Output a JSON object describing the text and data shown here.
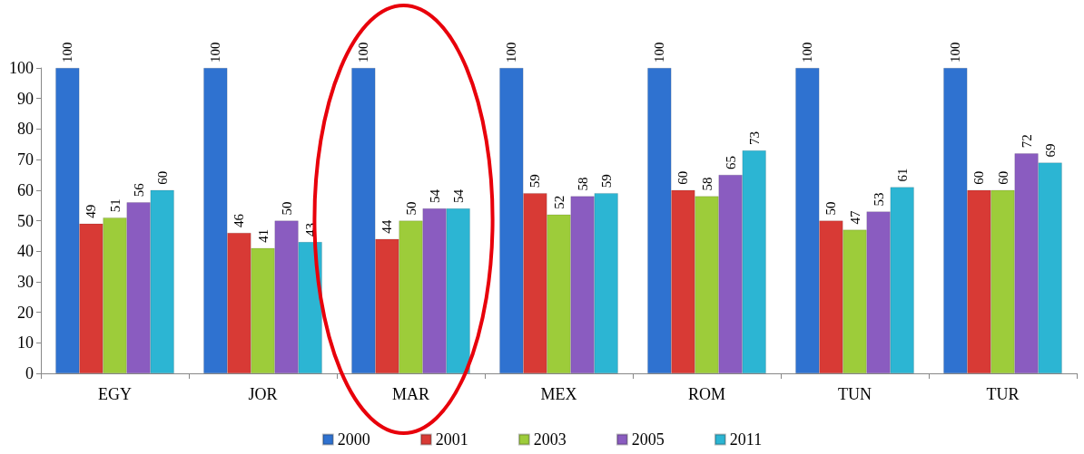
{
  "chart_data": {
    "type": "bar",
    "categories": [
      "EGY",
      "JOR",
      "MAR",
      "MEX",
      "ROM",
      "TUN",
      "TUR"
    ],
    "series": [
      {
        "name": "2000",
        "color": "#2f72d0",
        "values": [
          100,
          100,
          100,
          100,
          100,
          100,
          100
        ]
      },
      {
        "name": "2001",
        "color": "#d83a35",
        "values": [
          49,
          46,
          44,
          59,
          60,
          50,
          60
        ]
      },
      {
        "name": "2003",
        "color": "#9dcc3a",
        "values": [
          51,
          41,
          50,
          52,
          58,
          47,
          60
        ]
      },
      {
        "name": "2005",
        "color": "#8a5cc0",
        "values": [
          56,
          50,
          54,
          58,
          65,
          53,
          72
        ]
      },
      {
        "name": "2011",
        "color": "#2cb5d3",
        "values": [
          60,
          43,
          54,
          59,
          73,
          61,
          69
        ]
      }
    ],
    "ylim": [
      0,
      100
    ],
    "yticks": [
      0,
      10,
      20,
      30,
      40,
      50,
      60,
      70,
      80,
      90,
      100
    ],
    "grid": false,
    "legend": "bottom",
    "data_labels": true
  }
}
